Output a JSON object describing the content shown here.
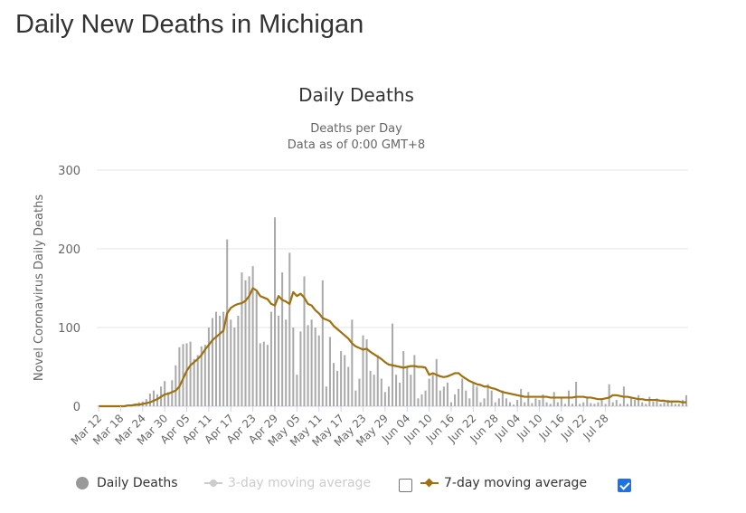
{
  "page": {
    "title": "Daily New Deaths in Michigan"
  },
  "chart_data": {
    "type": "bar",
    "title": "Daily Deaths",
    "subtitle_lines": [
      "Deaths per Day",
      "Data as of 0:00 GMT+8"
    ],
    "xlabel": "",
    "ylabel": "Novel Coronavirus Daily Deaths",
    "ylim": [
      0,
      300
    ],
    "yticks": [
      0,
      100,
      200,
      300
    ],
    "grid": true,
    "x_start": "Mar 12",
    "x_tick_labels": [
      "Mar 12",
      "Mar 18",
      "Mar 24",
      "Mar 30",
      "Apr 05",
      "Apr 11",
      "Apr 17",
      "Apr 23",
      "Apr 29",
      "May 05",
      "May 11",
      "May 17",
      "May 23",
      "May 29",
      "Jun 04",
      "Jun 10",
      "Jun 16",
      "Jun 22",
      "Jun 28",
      "Jul 04",
      "Jul 10",
      "Jul 16",
      "Jul 22",
      "Jul 28"
    ],
    "series": [
      {
        "name": "Daily Deaths",
        "type": "bar",
        "color": "#aaaaaa",
        "values": [
          0,
          0,
          0,
          0,
          0,
          0,
          0,
          0,
          1,
          2,
          3,
          5,
          6,
          9,
          16,
          20,
          15,
          25,
          32,
          18,
          33,
          52,
          75,
          79,
          80,
          82,
          60,
          65,
          76,
          78,
          100,
          112,
          120,
          115,
          120,
          212,
          110,
          100,
          115,
          170,
          160,
          165,
          178,
          145,
          80,
          82,
          78,
          120,
          240,
          115,
          170,
          110,
          195,
          100,
          40,
          95,
          165,
          103,
          110,
          100,
          90,
          160,
          25,
          88,
          55,
          45,
          70,
          65,
          50,
          110,
          20,
          35,
          90,
          85,
          45,
          40,
          65,
          35,
          18,
          25,
          105,
          40,
          30,
          70,
          50,
          40,
          65,
          10,
          15,
          20,
          35,
          40,
          60,
          20,
          25,
          30,
          5,
          15,
          22,
          35,
          20,
          10,
          30,
          25,
          5,
          10,
          28,
          20,
          5,
          10,
          20,
          10,
          5,
          2,
          8,
          22,
          5,
          18,
          4,
          10,
          8,
          15,
          5,
          3,
          18,
          5,
          12,
          3,
          20,
          3,
          31,
          3,
          5,
          12,
          4,
          3,
          5,
          8,
          3,
          28,
          5,
          8,
          3,
          25,
          3,
          10,
          8,
          14,
          5,
          3,
          12,
          6,
          10,
          3,
          5,
          8,
          6,
          3,
          3,
          8,
          14
        ]
      },
      {
        "name": "3-day moving average",
        "type": "line",
        "visible": false,
        "color": "#cccccc"
      },
      {
        "name": "7-day moving average",
        "type": "line",
        "color": "#a0700f",
        "values": [
          0,
          0,
          0,
          0,
          0,
          0,
          0,
          0,
          1,
          1,
          2,
          2,
          3,
          4,
          5,
          7,
          9,
          12,
          15,
          16,
          18,
          20,
          25,
          35,
          45,
          52,
          56,
          60,
          65,
          72,
          78,
          84,
          88,
          92,
          96,
          118,
          125,
          128,
          130,
          131,
          134,
          140,
          150,
          147,
          140,
          138,
          136,
          130,
          128,
          140,
          135,
          133,
          130,
          145,
          140,
          143,
          138,
          130,
          128,
          122,
          118,
          112,
          110,
          108,
          102,
          98,
          94,
          90,
          86,
          80,
          76,
          74,
          72,
          73,
          69,
          66,
          63,
          60,
          56,
          53,
          52,
          51,
          50,
          49,
          50,
          51,
          51,
          50,
          50,
          49,
          40,
          42,
          40,
          38,
          37,
          38,
          40,
          42,
          42,
          38,
          35,
          32,
          30,
          28,
          27,
          25,
          25,
          23,
          22,
          20,
          18,
          17,
          16,
          15,
          14,
          13,
          12,
          12,
          12,
          12,
          12,
          12,
          12,
          11,
          11,
          11,
          11,
          11,
          11,
          11,
          12,
          12,
          12,
          11,
          11,
          10,
          9,
          9,
          10,
          11,
          14,
          14,
          13,
          12,
          12,
          11,
          10,
          9,
          9,
          8,
          8,
          8,
          8,
          7,
          7,
          6,
          6,
          6,
          6,
          5,
          5
        ]
      }
    ],
    "legend": {
      "placement": "bottom",
      "items": [
        {
          "label": "Daily Deaths",
          "enabled": true
        },
        {
          "label": "3-day moving average",
          "enabled": false,
          "checked": false
        },
        {
          "label": "7-day moving average",
          "enabled": true,
          "checked": true
        }
      ]
    }
  }
}
